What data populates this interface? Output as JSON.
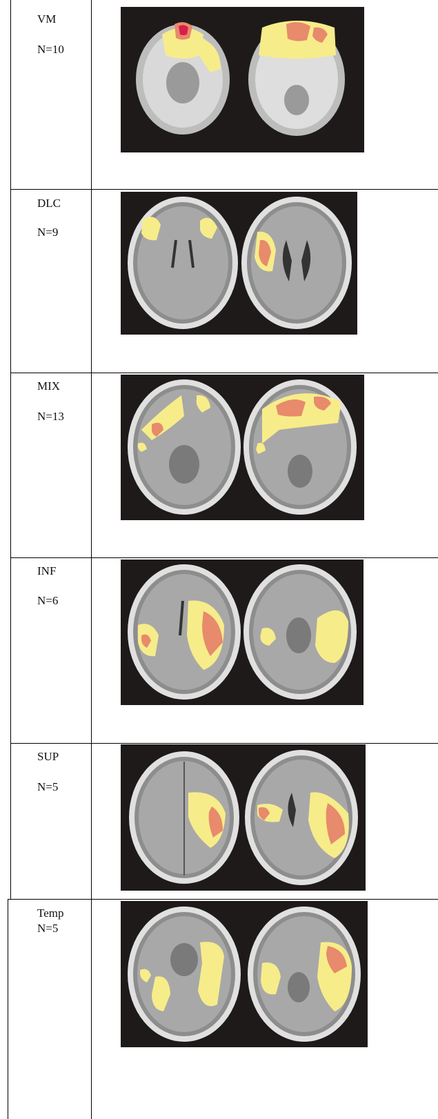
{
  "rows": [
    {
      "group": "VM",
      "n": "N=10"
    },
    {
      "group": "DLC",
      "n": "N=9"
    },
    {
      "group": "MIX",
      "n": "N=13"
    },
    {
      "group": "INF",
      "n": "N=6"
    },
    {
      "group": "SUP",
      "n": "N=5"
    },
    {
      "group": "Temp",
      "n": "N=5"
    }
  ],
  "colors": {
    "background": "#1e1a1a",
    "lesion_light": "#f7ec8a",
    "lesion_overlap": "#e88a6c",
    "lesion_max": "#d8204a"
  }
}
